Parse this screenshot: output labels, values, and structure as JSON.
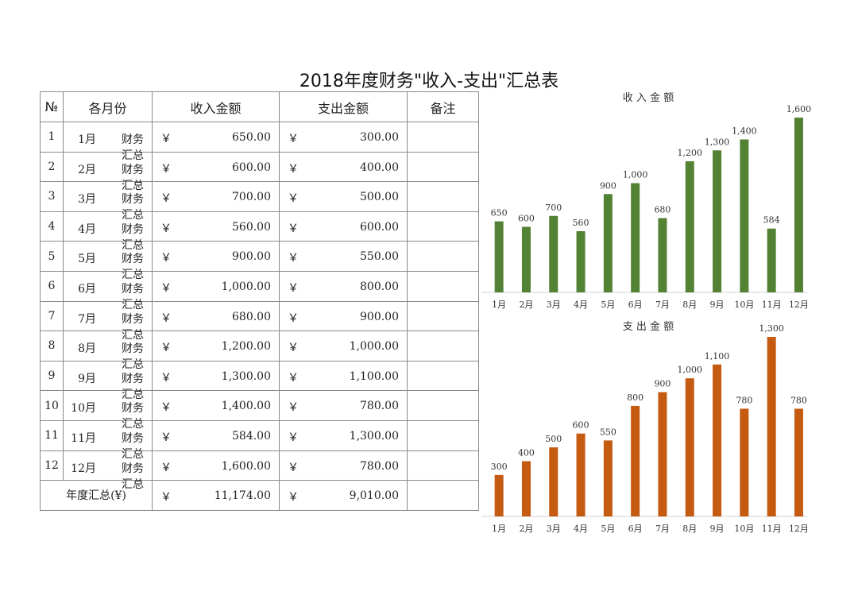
{
  "title": "2018年度财务\"收入-支出\"汇总表",
  "table": {
    "headers": {
      "no": "№",
      "month": "各月份",
      "income": "收入金额",
      "expense": "支出金额",
      "note": "备注"
    },
    "currency_symbol": "￥",
    "month_suffix_label": "财务汇总",
    "rows": [
      {
        "no": "1",
        "month": "1月",
        "income": "650.00",
        "expense": "300.00"
      },
      {
        "no": "2",
        "month": "2月",
        "income": "600.00",
        "expense": "400.00"
      },
      {
        "no": "3",
        "month": "3月",
        "income": "700.00",
        "expense": "500.00"
      },
      {
        "no": "4",
        "month": "4月",
        "income": "560.00",
        "expense": "600.00"
      },
      {
        "no": "5",
        "month": "5月",
        "income": "900.00",
        "expense": "550.00"
      },
      {
        "no": "6",
        "month": "6月",
        "income": "1,000.00",
        "expense": "800.00"
      },
      {
        "no": "7",
        "month": "7月",
        "income": "680.00",
        "expense": "900.00"
      },
      {
        "no": "8",
        "month": "8月",
        "income": "1,200.00",
        "expense": "1,000.00"
      },
      {
        "no": "9",
        "month": "9月",
        "income": "1,300.00",
        "expense": "1,100.00"
      },
      {
        "no": "10",
        "month": "10月",
        "income": "1,400.00",
        "expense": "780.00"
      },
      {
        "no": "11",
        "month": "11月",
        "income": "584.00",
        "expense": "1,300.00"
      },
      {
        "no": "12",
        "month": "12月",
        "income": "1,600.00",
        "expense": "780.00"
      }
    ],
    "total": {
      "label": "年度汇总(¥)",
      "income": "11,174.00",
      "expense": "9,010.00"
    }
  },
  "colors": {
    "income_bar": "#548235",
    "expense_bar": "#c55a11",
    "border": "#8a8a8a"
  },
  "chart_data": [
    {
      "type": "bar",
      "title": "收 入 金 额",
      "categories": [
        "1月",
        "2月",
        "3月",
        "4月",
        "5月",
        "6月",
        "7月",
        "8月",
        "9月",
        "10月",
        "11月",
        "12月"
      ],
      "values": [
        650,
        600,
        700,
        560,
        900,
        1000,
        680,
        1200,
        1300,
        1400,
        584,
        1600
      ],
      "labels": [
        "650",
        "600",
        "700",
        "560",
        "900",
        "1,000",
        "680",
        "1,200",
        "1,300",
        "1,400",
        "584",
        "1,600"
      ],
      "ylim": [
        0,
        1600
      ],
      "legend": "none",
      "grid": false
    },
    {
      "type": "bar",
      "title": "支 出 金 额",
      "categories": [
        "1月",
        "2月",
        "3月",
        "4月",
        "5月",
        "6月",
        "7月",
        "8月",
        "9月",
        "10月",
        "11月",
        "12月"
      ],
      "values": [
        300,
        400,
        500,
        600,
        550,
        800,
        900,
        1000,
        1100,
        780,
        1300,
        780
      ],
      "labels": [
        "300",
        "400",
        "500",
        "600",
        "550",
        "800",
        "900",
        "1,000",
        "1,100",
        "780",
        "1,300",
        "780"
      ],
      "ylim": [
        0,
        1300
      ],
      "legend": "none",
      "grid": false
    }
  ]
}
